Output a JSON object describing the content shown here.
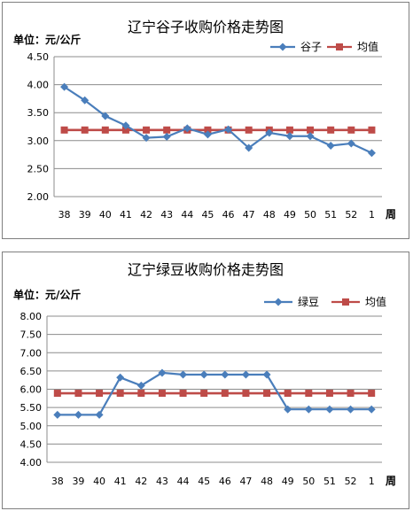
{
  "chart_data": [
    {
      "type": "line",
      "title": "辽宁谷子收购价格走势图",
      "ylabel": "单位：元/公斤",
      "xunit": "周",
      "categories": [
        "38",
        "39",
        "40",
        "41",
        "42",
        "43",
        "44",
        "45",
        "46",
        "47",
        "48",
        "49",
        "50",
        "51",
        "52",
        "1"
      ],
      "yticks": [
        "2.00",
        "2.50",
        "3.00",
        "3.50",
        "4.00",
        "4.50"
      ],
      "ylim": [
        2.0,
        4.5
      ],
      "grid": true,
      "legend_position": "top-right",
      "series": [
        {
          "name": "谷子",
          "color": "#4a7ebb",
          "marker": "diamond",
          "values": [
            3.96,
            3.72,
            3.44,
            3.27,
            3.05,
            3.07,
            3.22,
            3.11,
            3.2,
            2.87,
            3.14,
            3.08,
            3.08,
            2.91,
            2.95,
            2.78
          ]
        },
        {
          "name": "均值",
          "color": "#be4b48",
          "marker": "square",
          "values": [
            3.19,
            3.19,
            3.19,
            3.19,
            3.19,
            3.19,
            3.19,
            3.19,
            3.19,
            3.19,
            3.19,
            3.19,
            3.19,
            3.19,
            3.19,
            3.19
          ]
        }
      ]
    },
    {
      "type": "line",
      "title": "辽宁绿豆收购价格走势图",
      "ylabel": "单位：元/公斤",
      "xunit": "周",
      "categories": [
        "38",
        "39",
        "40",
        "41",
        "42",
        "43",
        "44",
        "45",
        "46",
        "47",
        "48",
        "49",
        "50",
        "51",
        "52",
        "1"
      ],
      "yticks": [
        "4.00",
        "4.50",
        "5.00",
        "5.50",
        "6.00",
        "6.50",
        "7.00",
        "7.50",
        "8.00"
      ],
      "ylim": [
        4.0,
        8.0
      ],
      "grid": true,
      "legend_position": "top-right",
      "series": [
        {
          "name": "绿豆",
          "color": "#4a7ebb",
          "marker": "diamond",
          "values": [
            5.3,
            5.3,
            5.3,
            6.32,
            6.1,
            6.45,
            6.4,
            6.4,
            6.4,
            6.4,
            6.4,
            5.45,
            5.45,
            5.45,
            5.45,
            5.45
          ]
        },
        {
          "name": "均值",
          "color": "#be4b48",
          "marker": "square",
          "values": [
            5.89,
            5.89,
            5.89,
            5.89,
            5.89,
            5.89,
            5.89,
            5.89,
            5.89,
            5.89,
            5.89,
            5.89,
            5.89,
            5.89,
            5.89,
            5.89
          ]
        }
      ]
    }
  ]
}
